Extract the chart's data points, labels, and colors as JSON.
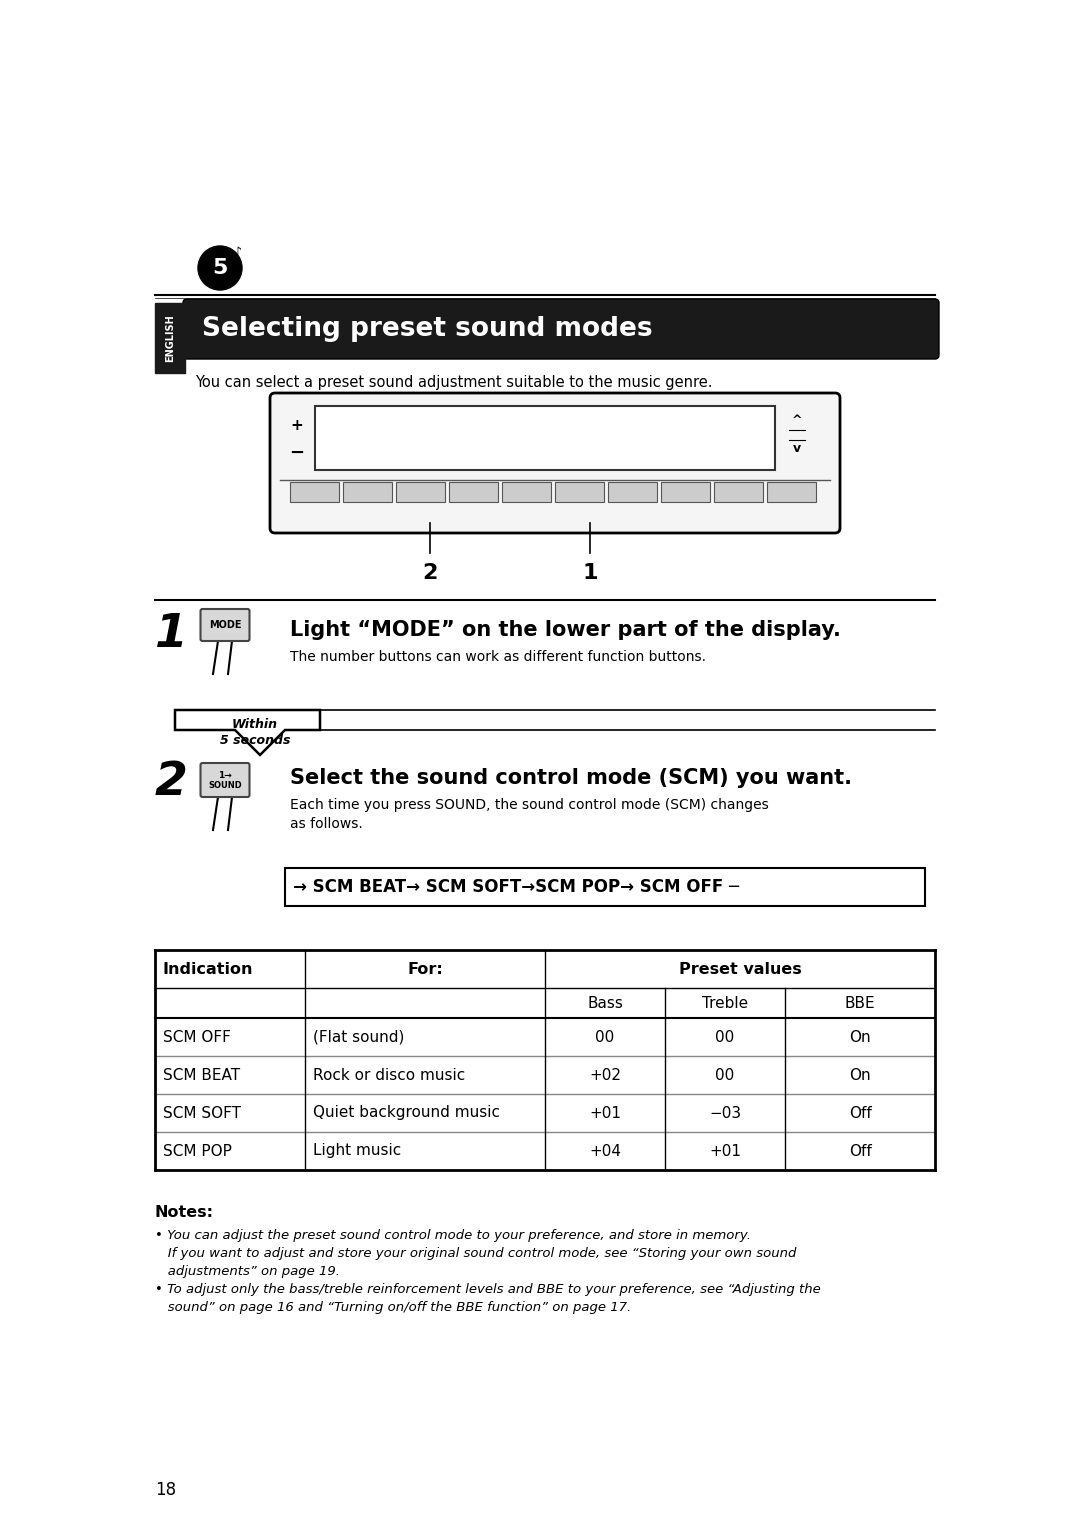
{
  "page_bg": "#ffffff",
  "page_number": "18",
  "title": "Selecting preset sound modes",
  "title_bg": "#1a1a1a",
  "title_color": "#ffffff",
  "english_tab_bg": "#1a1a1a",
  "english_tab_color": "#ffffff",
  "intro_text": "You can select a preset sound adjustment suitable to the music genre.",
  "step1_heading": "Light “MODE” on the lower part of the display.",
  "step1_subtext": "The number buttons can work as different function buttons.",
  "step2_heading": "Select the sound control mode (SCM) you want.",
  "step2_subtext": "Each time you press SOUND, the sound control mode (SCM) changes\nas follows.",
  "within_text": "Within\n5 seconds",
  "table_rows": [
    [
      "SCM OFF",
      "(Flat sound)",
      "00",
      "00",
      "On"
    ],
    [
      "SCM BEAT",
      "Rock or disco music",
      "+02",
      "00",
      "On"
    ],
    [
      "SCM SOFT",
      "Quiet background music",
      "+01",
      "−03",
      "Off"
    ],
    [
      "SCM POP",
      "Light music",
      "+04",
      "+01",
      "Off"
    ]
  ],
  "notes_heading": "Notes:",
  "notes_lines": [
    "• You can adjust the preset sound control mode to your preference, and store in memory.",
    "   If you want to adjust and store your original sound control mode, see “Storing your own sound",
    "   adjustments” on page 19.",
    "• To adjust only the bass/treble reinforcement levels and BBE to your preference, see “Adjusting the",
    "   sound” on page 16 and “Turning on/off the BBE function” on page 17."
  ]
}
